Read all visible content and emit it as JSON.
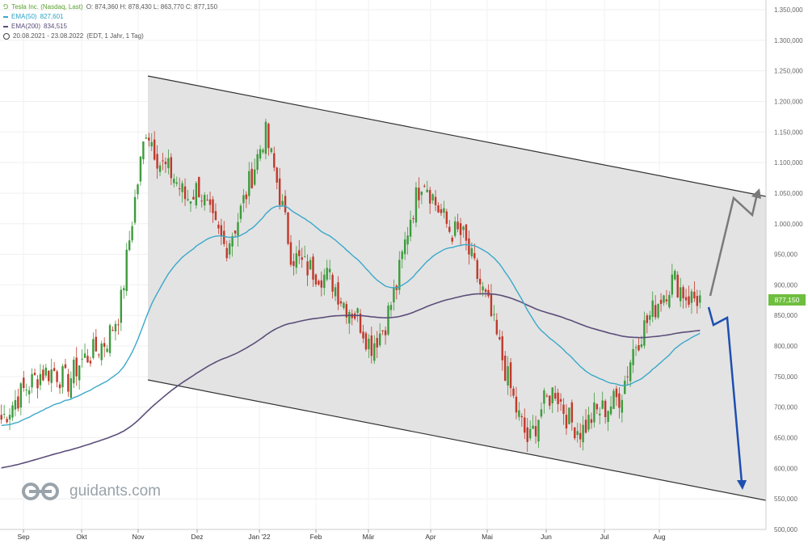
{
  "header": {
    "title": "Tesla Inc. (Nasdaq, Last)",
    "ohlc": "O: 874,360  H: 878,430  L: 863,770  C: 877,150",
    "ema50_label": "EMA(50)",
    "ema50_value": "827,601",
    "ema200_label": "EMA(200)",
    "ema200_value": "834,515",
    "range": "20.08.2021 - 23.08.2022",
    "interval": "(EDT, 1 Jahr, 1 Tag)"
  },
  "logo": {
    "text": "guidants.com"
  },
  "last_price_label": "877,150",
  "colors": {
    "up": "#3d9b3d",
    "down": "#c0392b",
    "ema50": "#3aa8c9",
    "ema200": "#5c4e7a",
    "channel_fill": "#e3e3e3",
    "channel_line": "#333333",
    "arrow_up": "#7a7a7a",
    "arrow_down": "#1e4fb0",
    "last_price": "#6fbf3f"
  },
  "chart_data": {
    "type": "candlestick",
    "title": "Tesla Inc. (Nasdaq, Last)",
    "y_axis": {
      "range": [
        500000,
        1350000
      ],
      "ticks": [
        "1.350,000",
        "1.300,000",
        "1.250,000",
        "1.200,000",
        "1.150,000",
        "1.100,000",
        "1.050,000",
        "1.000,000",
        "950,000",
        "900,000",
        "850,000",
        "800,000",
        "750,000",
        "700,000",
        "650,000",
        "600,000",
        "550,000",
        "500,000"
      ]
    },
    "x_axis": {
      "labels": [
        "Sep",
        "Okt",
        "Nov",
        "Dez",
        "Jan '22",
        "Feb",
        "Mär",
        "Apr",
        "Mai",
        "Jun",
        "Jul",
        "Aug"
      ]
    },
    "weekly_closes": {
      "description": "approximate closes in price units",
      "x": [
        "Aug-20",
        "Aug-27",
        "Sep-03",
        "Sep-10",
        "Sep-17",
        "Sep-24",
        "Oct-01",
        "Oct-08",
        "Oct-15",
        "Oct-22",
        "Oct-29",
        "Nov-05",
        "Nov-12",
        "Nov-19",
        "Nov-26",
        "Dec-03",
        "Dec-10",
        "Dec-17",
        "Dec-24",
        "Dec-31",
        "Jan-07",
        "Jan-14",
        "Jan-21",
        "Jan-28",
        "Feb-04",
        "Feb-11",
        "Feb-18",
        "Feb-25",
        "Mar-04",
        "Mar-11",
        "Mar-18",
        "Mar-25",
        "Apr-01",
        "Apr-08",
        "Apr-15",
        "Apr-22",
        "Apr-29",
        "May-06",
        "May-13",
        "May-20",
        "May-27",
        "Jun-03",
        "Jun-10",
        "Jun-17",
        "Jun-24",
        "Jul-01",
        "Jul-08",
        "Jul-15",
        "Jul-22",
        "Jul-29",
        "Aug-05",
        "Aug-12",
        "Aug-19",
        "Aug-23"
      ],
      "close": [
        680,
        710,
        735,
        755,
        760,
        740,
        775,
        790,
        810,
        860,
        1020,
        1160,
        1100,
        1080,
        1040,
        1060,
        1000,
        960,
        1010,
        1080,
        1150,
        1060,
        950,
        930,
        920,
        910,
        870,
        850,
        800,
        830,
        900,
        1010,
        1080,
        1030,
        990,
        980,
        920,
        860,
        780,
        700,
        640,
        700,
        730,
        680,
        660,
        690,
        700,
        720,
        800,
        840,
        880,
        910,
        880,
        877
      ]
    },
    "ema50_latest": 827.601,
    "ema200_latest": 834.515,
    "last_close": 877.15,
    "annotations": [
      {
        "type": "descending channel",
        "upper_start": 1245000,
        "upper_end": 1045000,
        "lower_start": 745000,
        "lower_end": 545000
      },
      {
        "type": "scenario arrow up",
        "target": 1060000
      },
      {
        "type": "scenario arrow down",
        "target": 570000
      }
    ]
  }
}
